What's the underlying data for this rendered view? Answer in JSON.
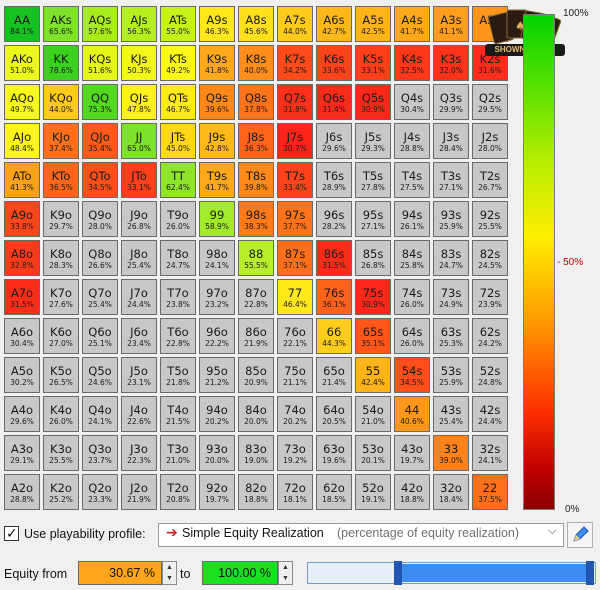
{
  "grid": {
    "rows": [
      [
        {
          "hand": "AA",
          "pct": "84.1%",
          "color": "#15c21f"
        },
        {
          "hand": "AKs",
          "pct": "65.6%",
          "color": "#7fe22a"
        },
        {
          "hand": "AQs",
          "pct": "57.6%",
          "color": "#a9ec1c"
        },
        {
          "hand": "AJs",
          "pct": "56.3%",
          "color": "#b5ef1c"
        },
        {
          "hand": "ATs",
          "pct": "55.0%",
          "color": "#c6f21a"
        },
        {
          "hand": "A9s",
          "pct": "46.3%",
          "color": "#ffe71a"
        },
        {
          "hand": "A8s",
          "pct": "45.6%",
          "color": "#ffe01a"
        },
        {
          "hand": "A7s",
          "pct": "44.0%",
          "color": "#ffcb1a"
        },
        {
          "hand": "A6s",
          "pct": "42.7%",
          "color": "#ffb81a"
        },
        {
          "hand": "A5s",
          "pct": "42.5%",
          "color": "#ffb51a"
        },
        {
          "hand": "A4s",
          "pct": "41.7%",
          "color": "#ffa81a"
        },
        {
          "hand": "A3s",
          "pct": "41.1%",
          "color": "#ff9e1a"
        },
        {
          "hand": "A2s",
          "pct": "",
          "color": "#ff951a"
        }
      ],
      [
        {
          "hand": "AKo",
          "pct": "51.0%",
          "color": "#ecf81a"
        },
        {
          "hand": "KK",
          "pct": "78.6%",
          "color": "#3dd11f"
        },
        {
          "hand": "KQs",
          "pct": "51.6%",
          "color": "#e4f61a"
        },
        {
          "hand": "KJs",
          "pct": "50.3%",
          "color": "#f2f91a"
        },
        {
          "hand": "KTs",
          "pct": "49.2%",
          "color": "#fdf81a"
        },
        {
          "hand": "K9s",
          "pct": "41.8%",
          "color": "#ffa81a"
        },
        {
          "hand": "K8s",
          "pct": "40.0%",
          "color": "#ff8e1a"
        },
        {
          "hand": "K7s",
          "pct": "34.2%",
          "color": "#ff4a1a"
        },
        {
          "hand": "K6s",
          "pct": "33.6%",
          "color": "#ff441a"
        },
        {
          "hand": "K5s",
          "pct": "33.1%",
          "color": "#ff3e1a"
        },
        {
          "hand": "K4s",
          "pct": "32.5%",
          "color": "#ff381a"
        },
        {
          "hand": "K3s",
          "pct": "32.0%",
          "color": "#ff331a"
        },
        {
          "hand": "K2s",
          "pct": "31.6%",
          "color": "#ff2e1a"
        }
      ],
      [
        {
          "hand": "AQo",
          "pct": "49.7%",
          "color": "#f8f81a"
        },
        {
          "hand": "KQo",
          "pct": "44.0%",
          "color": "#ffcb1a"
        },
        {
          "hand": "QQ",
          "pct": "75.3%",
          "color": "#52d81f"
        },
        {
          "hand": "QJs",
          "pct": "47.8%",
          "color": "#fff21a"
        },
        {
          "hand": "QTs",
          "pct": "46.7%",
          "color": "#ffea1a"
        },
        {
          "hand": "Q9s",
          "pct": "39.6%",
          "color": "#ff881a"
        },
        {
          "hand": "Q8s",
          "pct": "37.8%",
          "color": "#ff741a"
        },
        {
          "hand": "Q7s",
          "pct": "31.8%",
          "color": "#ff301a"
        },
        {
          "hand": "Q6s",
          "pct": "31.4%",
          "color": "#ff2b1a"
        },
        {
          "hand": "Q5s",
          "pct": "30.9%",
          "color": "#ff261a"
        },
        {
          "hand": "Q4s",
          "pct": "30.4%",
          "color": "gray"
        },
        {
          "hand": "Q3s",
          "pct": "29.9%",
          "color": "gray"
        },
        {
          "hand": "Q2s",
          "pct": "29.5%",
          "color": "gray"
        }
      ],
      [
        {
          "hand": "AJo",
          "pct": "48.4%",
          "color": "#fff51a"
        },
        {
          "hand": "KJo",
          "pct": "37.4%",
          "color": "#ff701a"
        },
        {
          "hand": "QJo",
          "pct": "35.4%",
          "color": "#ff5a1a"
        },
        {
          "hand": "JJ",
          "pct": "65.0%",
          "color": "#7fe22a"
        },
        {
          "hand": "JTs",
          "pct": "45.0%",
          "color": "#ffd81a"
        },
        {
          "hand": "J9s",
          "pct": "42.8%",
          "color": "#ffb91a"
        },
        {
          "hand": "J8s",
          "pct": "36.3%",
          "color": "#ff641a"
        },
        {
          "hand": "J7s",
          "pct": "30.7%",
          "color": "#ff241a"
        },
        {
          "hand": "J6s",
          "pct": "29.6%",
          "color": "gray"
        },
        {
          "hand": "J5s",
          "pct": "29.3%",
          "color": "gray"
        },
        {
          "hand": "J4s",
          "pct": "28.8%",
          "color": "gray"
        },
        {
          "hand": "J3s",
          "pct": "28.4%",
          "color": "gray"
        },
        {
          "hand": "J2s",
          "pct": "28.0%",
          "color": "gray"
        }
      ],
      [
        {
          "hand": "ATo",
          "pct": "41.3%",
          "color": "#ffa21a"
        },
        {
          "hand": "KTo",
          "pct": "36.5%",
          "color": "#ff661a"
        },
        {
          "hand": "QTo",
          "pct": "34.5%",
          "color": "#ff4e1a"
        },
        {
          "hand": "JTo",
          "pct": "33.1%",
          "color": "#ff3e1a"
        },
        {
          "hand": "TT",
          "pct": "62.4%",
          "color": "#8fe52a"
        },
        {
          "hand": "T9s",
          "pct": "41.7%",
          "color": "#ffa81a"
        },
        {
          "hand": "T8s",
          "pct": "39.8%",
          "color": "#ff8a1a"
        },
        {
          "hand": "T7s",
          "pct": "33.4%",
          "color": "#ff421a"
        },
        {
          "hand": "T6s",
          "pct": "28.9%",
          "color": "gray"
        },
        {
          "hand": "T5s",
          "pct": "27.8%",
          "color": "gray"
        },
        {
          "hand": "T4s",
          "pct": "27.5%",
          "color": "gray"
        },
        {
          "hand": "T3s",
          "pct": "27.1%",
          "color": "gray"
        },
        {
          "hand": "T2s",
          "pct": "26.7%",
          "color": "gray"
        }
      ],
      [
        {
          "hand": "A9o",
          "pct": "33.8%",
          "color": "#ff461a"
        },
        {
          "hand": "K9o",
          "pct": "29.7%",
          "color": "gray"
        },
        {
          "hand": "Q9o",
          "pct": "28.0%",
          "color": "gray"
        },
        {
          "hand": "J9o",
          "pct": "26.8%",
          "color": "gray"
        },
        {
          "hand": "T9o",
          "pct": "26.0%",
          "color": "gray"
        },
        {
          "hand": "99",
          "pct": "58.9%",
          "color": "#a3ea2a"
        },
        {
          "hand": "98s",
          "pct": "38.3%",
          "color": "#ff7a1a"
        },
        {
          "hand": "97s",
          "pct": "37.7%",
          "color": "#ff741a"
        },
        {
          "hand": "96s",
          "pct": "28.2%",
          "color": "gray"
        },
        {
          "hand": "95s",
          "pct": "27.1%",
          "color": "gray"
        },
        {
          "hand": "94s",
          "pct": "26.1%",
          "color": "gray"
        },
        {
          "hand": "93s",
          "pct": "25.9%",
          "color": "gray"
        },
        {
          "hand": "92s",
          "pct": "25.5%",
          "color": "gray"
        }
      ],
      [
        {
          "hand": "A8o",
          "pct": "32.8%",
          "color": "#ff3a1a"
        },
        {
          "hand": "K8o",
          "pct": "28.3%",
          "color": "gray"
        },
        {
          "hand": "Q8o",
          "pct": "26.6%",
          "color": "gray"
        },
        {
          "hand": "J8o",
          "pct": "25.4%",
          "color": "gray"
        },
        {
          "hand": "T8o",
          "pct": "24.7%",
          "color": "gray"
        },
        {
          "hand": "98o",
          "pct": "24.1%",
          "color": "gray"
        },
        {
          "hand": "88",
          "pct": "55.5%",
          "color": "#b8ef2a"
        },
        {
          "hand": "87s",
          "pct": "37.1%",
          "color": "#ff6e1a"
        },
        {
          "hand": "86s",
          "pct": "31.5%",
          "color": "#ff2c1a"
        },
        {
          "hand": "85s",
          "pct": "26.8%",
          "color": "gray"
        },
        {
          "hand": "84s",
          "pct": "25.8%",
          "color": "gray"
        },
        {
          "hand": "83s",
          "pct": "24.7%",
          "color": "gray"
        },
        {
          "hand": "82s",
          "pct": "24.5%",
          "color": "gray"
        }
      ],
      [
        {
          "hand": "A7o",
          "pct": "31.5%",
          "color": "#ff2c1a"
        },
        {
          "hand": "K7o",
          "pct": "27.6%",
          "color": "gray"
        },
        {
          "hand": "Q7o",
          "pct": "25.4%",
          "color": "gray"
        },
        {
          "hand": "J7o",
          "pct": "24.4%",
          "color": "gray"
        },
        {
          "hand": "T7o",
          "pct": "23.8%",
          "color": "gray"
        },
        {
          "hand": "97o",
          "pct": "23.2%",
          "color": "gray"
        },
        {
          "hand": "87o",
          "pct": "22.8%",
          "color": "gray"
        },
        {
          "hand": "77",
          "pct": "46.4%",
          "color": "#ffe71a"
        },
        {
          "hand": "76s",
          "pct": "36.1%",
          "color": "#ff621a"
        },
        {
          "hand": "75s",
          "pct": "30.9%",
          "color": "#ff261a"
        },
        {
          "hand": "74s",
          "pct": "26.0%",
          "color": "gray"
        },
        {
          "hand": "73s",
          "pct": "24.9%",
          "color": "gray"
        },
        {
          "hand": "72s",
          "pct": "23.9%",
          "color": "gray"
        }
      ],
      [
        {
          "hand": "A6o",
          "pct": "30.4%",
          "color": "gray"
        },
        {
          "hand": "K6o",
          "pct": "27.0%",
          "color": "gray"
        },
        {
          "hand": "Q6o",
          "pct": "25.1%",
          "color": "gray"
        },
        {
          "hand": "J6o",
          "pct": "23.4%",
          "color": "gray"
        },
        {
          "hand": "T6o",
          "pct": "22.8%",
          "color": "gray"
        },
        {
          "hand": "96o",
          "pct": "22.2%",
          "color": "gray"
        },
        {
          "hand": "86o",
          "pct": "21.9%",
          "color": "gray"
        },
        {
          "hand": "76o",
          "pct": "22.1%",
          "color": "gray"
        },
        {
          "hand": "66",
          "pct": "44.3%",
          "color": "#ffce1a"
        },
        {
          "hand": "65s",
          "pct": "35.1%",
          "color": "#ff561a"
        },
        {
          "hand": "64s",
          "pct": "26.0%",
          "color": "gray"
        },
        {
          "hand": "63s",
          "pct": "25.3%",
          "color": "gray"
        },
        {
          "hand": "62s",
          "pct": "24.2%",
          "color": "gray"
        }
      ],
      [
        {
          "hand": "A5o",
          "pct": "30.2%",
          "color": "gray"
        },
        {
          "hand": "K5o",
          "pct": "26.5%",
          "color": "gray"
        },
        {
          "hand": "Q5o",
          "pct": "24.6%",
          "color": "gray"
        },
        {
          "hand": "J5o",
          "pct": "23.1%",
          "color": "gray"
        },
        {
          "hand": "T5o",
          "pct": "21.8%",
          "color": "gray"
        },
        {
          "hand": "95o",
          "pct": "21.2%",
          "color": "gray"
        },
        {
          "hand": "85o",
          "pct": "20.9%",
          "color": "gray"
        },
        {
          "hand": "75o",
          "pct": "21.1%",
          "color": "gray"
        },
        {
          "hand": "65o",
          "pct": "21.4%",
          "color": "gray"
        },
        {
          "hand": "55",
          "pct": "42.4%",
          "color": "#ffb51a"
        },
        {
          "hand": "54s",
          "pct": "34.5%",
          "color": "#ff4e1a"
        },
        {
          "hand": "53s",
          "pct": "25.9%",
          "color": "gray"
        },
        {
          "hand": "52s",
          "pct": "24.8%",
          "color": "gray"
        }
      ],
      [
        {
          "hand": "A4o",
          "pct": "29.6%",
          "color": "gray"
        },
        {
          "hand": "K4o",
          "pct": "26.0%",
          "color": "gray"
        },
        {
          "hand": "Q4o",
          "pct": "24.1%",
          "color": "gray"
        },
        {
          "hand": "J4o",
          "pct": "22.6%",
          "color": "gray"
        },
        {
          "hand": "T4o",
          "pct": "21.5%",
          "color": "gray"
        },
        {
          "hand": "94o",
          "pct": "20.2%",
          "color": "gray"
        },
        {
          "hand": "84o",
          "pct": "20.0%",
          "color": "gray"
        },
        {
          "hand": "74o",
          "pct": "20.2%",
          "color": "gray"
        },
        {
          "hand": "64o",
          "pct": "20.5%",
          "color": "gray"
        },
        {
          "hand": "54o",
          "pct": "21.0%",
          "color": "gray"
        },
        {
          "hand": "44",
          "pct": "40.6%",
          "color": "#ff981a"
        },
        {
          "hand": "43s",
          "pct": "25.4%",
          "color": "gray"
        },
        {
          "hand": "42s",
          "pct": "24.4%",
          "color": "gray"
        }
      ],
      [
        {
          "hand": "A3o",
          "pct": "29.1%",
          "color": "gray"
        },
        {
          "hand": "K3o",
          "pct": "25.5%",
          "color": "gray"
        },
        {
          "hand": "Q3o",
          "pct": "23.7%",
          "color": "gray"
        },
        {
          "hand": "J3o",
          "pct": "22.3%",
          "color": "gray"
        },
        {
          "hand": "T3o",
          "pct": "21.0%",
          "color": "gray"
        },
        {
          "hand": "93o",
          "pct": "20.0%",
          "color": "gray"
        },
        {
          "hand": "83o",
          "pct": "19.0%",
          "color": "gray"
        },
        {
          "hand": "73o",
          "pct": "19.2%",
          "color": "gray"
        },
        {
          "hand": "63o",
          "pct": "19.6%",
          "color": "gray"
        },
        {
          "hand": "53o",
          "pct": "20.1%",
          "color": "gray"
        },
        {
          "hand": "43o",
          "pct": "19.7%",
          "color": "gray"
        },
        {
          "hand": "33",
          "pct": "39.0%",
          "color": "#ff821a"
        },
        {
          "hand": "32s",
          "pct": "24.1%",
          "color": "gray"
        }
      ],
      [
        {
          "hand": "A2o",
          "pct": "28.8%",
          "color": "gray"
        },
        {
          "hand": "K2o",
          "pct": "25.2%",
          "color": "gray"
        },
        {
          "hand": "Q2o",
          "pct": "23.3%",
          "color": "gray"
        },
        {
          "hand": "J2o",
          "pct": "21.9%",
          "color": "gray"
        },
        {
          "hand": "T2o",
          "pct": "20.8%",
          "color": "gray"
        },
        {
          "hand": "92o",
          "pct": "19.7%",
          "color": "gray"
        },
        {
          "hand": "82o",
          "pct": "18.8%",
          "color": "gray"
        },
        {
          "hand": "72o",
          "pct": "18.1%",
          "color": "gray"
        },
        {
          "hand": "62o",
          "pct": "18.5%",
          "color": "gray"
        },
        {
          "hand": "52o",
          "pct": "19.1%",
          "color": "gray"
        },
        {
          "hand": "42o",
          "pct": "18.8%",
          "color": "gray"
        },
        {
          "hand": "32o",
          "pct": "18.4%",
          "color": "gray"
        },
        {
          "hand": "22",
          "pct": "37.5%",
          "color": "#ff701a"
        }
      ]
    ]
  },
  "scale": {
    "top_label": "100%",
    "mid_label": "- 50%",
    "bottom_label": "0%"
  },
  "logo": {
    "text": "SHOWNONLINE"
  },
  "playability": {
    "checkbox_label": "Use playability profile:",
    "checked": true,
    "profile_name": "Simple Equity Realization",
    "profile_desc": "(percentage of equity realization)"
  },
  "equity": {
    "from_label": "Equity from",
    "from_value": "30.67 %",
    "to_label": "to",
    "to_value": "100.00 %",
    "slider_from_fraction": 0.3067,
    "slider_to_fraction": 1.0
  },
  "colors": {
    "gray_cell": "#c8c8c8",
    "from_box": "#ffa51a",
    "to_box": "#19e11f",
    "accent": "#3d8cef"
  }
}
